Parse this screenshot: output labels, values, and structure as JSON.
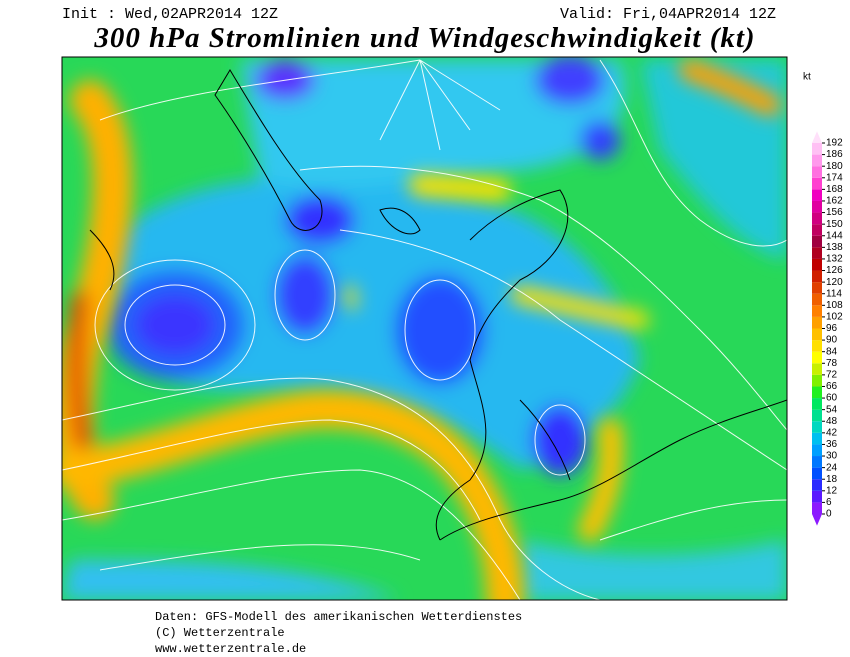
{
  "header": {
    "init": "Init : Wed,02APR2014 12Z",
    "valid": "Valid: Fri,04APR2014 12Z",
    "title": "300 hPa Stromlinien und Windgeschwindigkeit (kt)"
  },
  "legend": {
    "unit": "kt",
    "levels": [
      0,
      6,
      12,
      18,
      24,
      30,
      36,
      42,
      48,
      54,
      60,
      66,
      72,
      78,
      84,
      90,
      96,
      102,
      108,
      114,
      120,
      126,
      132,
      138,
      144,
      150,
      156,
      162,
      168,
      174,
      180,
      186,
      192
    ],
    "colors": [
      "#8c1aff",
      "#5a1aff",
      "#2a2aff",
      "#0050ff",
      "#0078ff",
      "#00a0ff",
      "#00c0f0",
      "#00d8c0",
      "#00e090",
      "#00e860",
      "#20f020",
      "#80f000",
      "#c8f000",
      "#ffff00",
      "#ffe000",
      "#ffc000",
      "#ffa000",
      "#ff8000",
      "#f06000",
      "#e04000",
      "#d02000",
      "#c00000",
      "#b00020",
      "#a00040",
      "#c00060",
      "#d00080",
      "#e000a0",
      "#f000c0",
      "#ff40d0",
      "#ff70e0",
      "#ff99ec",
      "#ffc0f4",
      "#ffe0fa"
    ]
  },
  "footer": {
    "lines": [
      "Daten: GFS-Modell des amerikanischen Wetterdienstes",
      "(C) Wetterzentrale",
      "www.wetterzentrale.de"
    ]
  }
}
